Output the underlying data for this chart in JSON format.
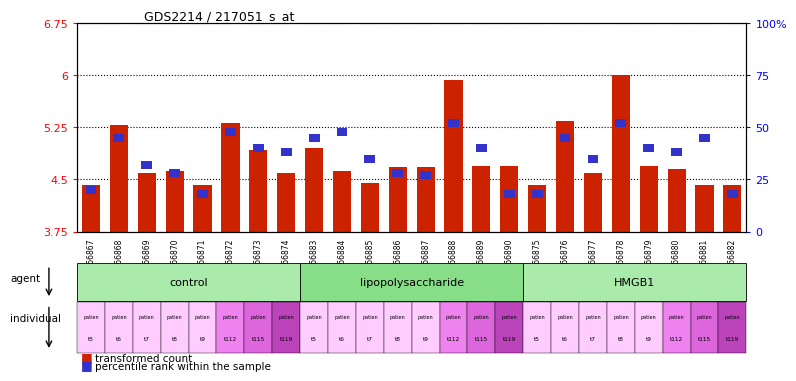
{
  "title": "GDS2214 / 217051_s_at",
  "gsm_labels": [
    "GSM66867",
    "GSM66868",
    "GSM66869",
    "GSM66870",
    "GSM66871",
    "GSM66872",
    "GSM66873",
    "GSM66874",
    "GSM66883",
    "GSM66884",
    "GSM66885",
    "GSM66886",
    "GSM66887",
    "GSM66888",
    "GSM66889",
    "GSM66890",
    "GSM66875",
    "GSM66876",
    "GSM66877",
    "GSM66878",
    "GSM66879",
    "GSM66880",
    "GSM66881",
    "GSM66882"
  ],
  "red_values": [
    4.42,
    5.28,
    4.6,
    4.62,
    4.42,
    5.32,
    4.92,
    4.6,
    4.95,
    4.62,
    4.45,
    4.68,
    4.68,
    5.93,
    4.7,
    4.7,
    4.42,
    5.34,
    4.6,
    6.01,
    4.7,
    4.65,
    4.42,
    4.42
  ],
  "blue_values": [
    20,
    45,
    32,
    28,
    18,
    48,
    40,
    38,
    45,
    48,
    35,
    28,
    27,
    52,
    40,
    18,
    18,
    45,
    35,
    52,
    40,
    38,
    45,
    18
  ],
  "groups": [
    {
      "label": "control",
      "start": 0,
      "end": 8,
      "color": "#AAEAAA"
    },
    {
      "label": "lipopolysaccharide",
      "start": 8,
      "end": 16,
      "color": "#88DD88"
    },
    {
      "label": "HMGB1",
      "start": 16,
      "end": 24,
      "color": "#AAEAAA"
    }
  ],
  "individual_labels": [
    "t5",
    "t6",
    "t7",
    "t8",
    "t9",
    "t112",
    "t115",
    "t119"
  ],
  "ylim_left": [
    3.75,
    6.75
  ],
  "ylim_right": [
    0,
    100
  ],
  "yticks_left": [
    3.75,
    4.5,
    5.25,
    6.0,
    6.75
  ],
  "yticks_right": [
    0,
    25,
    50,
    75,
    100
  ],
  "ytick_labels_left": [
    "3.75",
    "4.5",
    "5.25",
    "6",
    "6.75"
  ],
  "ytick_labels_right": [
    "0",
    "25",
    "50",
    "75",
    "100%"
  ],
  "bar_color": "#CC2200",
  "blue_color": "#3333CC",
  "individual_colors": [
    "#FFCCFF",
    "#FFCCFF",
    "#FFCCFF",
    "#FFCCFF",
    "#FFCCFF",
    "#EE82EE",
    "#DD66DD",
    "#BB44BB"
  ]
}
